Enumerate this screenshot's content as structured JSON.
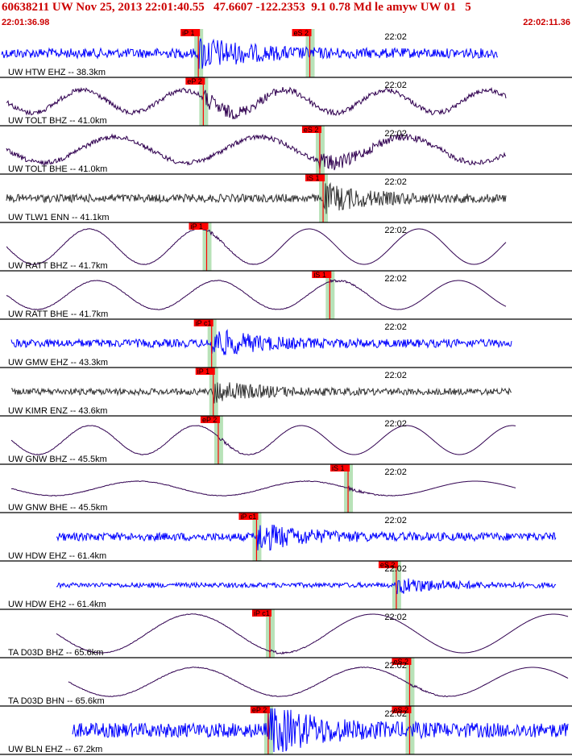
{
  "header": {
    "title": "60638211 UW Nov 25, 2013 22:01:40.55   47.6607 -122.2353  9.1 0.78 Md le amyw UW 01   5",
    "start_time": "22:01:36.98",
    "end_time": "22:02:11.36"
  },
  "colors": {
    "header_text": "#cc0000",
    "pick_box": "#ff0000",
    "pick_window": "#b8e2b8",
    "trace_blue": "#0000ff",
    "trace_purple": "#300050",
    "trace_gray": "#333333",
    "separator": "#000000"
  },
  "chart_data": {
    "type": "seismogram",
    "x_axis": {
      "start": "22:01:36.98",
      "end": "22:02:11.36",
      "minute_tick_label": "22:02"
    },
    "traces": [
      {
        "label": "UW HTW EHZ -- 38.3km",
        "channel_type": "EHZ",
        "color_key": "trace_blue",
        "picks": [
          {
            "label": "iP 1",
            "phase": "P",
            "time": "22:01:48.9"
          },
          {
            "label": "eS 2",
            "phase": "S",
            "time": "22:01:55.6"
          }
        ]
      },
      {
        "label": "UW TOLT BHZ -- 41.0km",
        "channel_type": "BHZ",
        "color_key": "trace_purple",
        "picks": [
          {
            "label": "eP 2",
            "phase": "P",
            "time": "22:01:49.2"
          }
        ]
      },
      {
        "label": "UW TOLT BHE -- 41.0km",
        "channel_type": "BHE",
        "color_key": "trace_purple",
        "picks": [
          {
            "label": "eS 2",
            "phase": "S",
            "time": "22:01:56.2"
          }
        ]
      },
      {
        "label": "UW TLW1 ENN -- 41.1km",
        "channel_type": "ENN",
        "color_key": "trace_gray",
        "picks": [
          {
            "label": "iS 1",
            "phase": "S",
            "time": "22:01:56.4"
          }
        ]
      },
      {
        "label": "UW RATT BHZ -- 41.7km",
        "channel_type": "BHZ",
        "color_key": "trace_purple",
        "picks": [
          {
            "label": "iP 1",
            "phase": "P",
            "time": "22:01:49.4"
          }
        ]
      },
      {
        "label": "UW RATT BHE -- 41.7km",
        "channel_type": "BHE",
        "color_key": "trace_purple",
        "picks": [
          {
            "label": "iS 1",
            "phase": "S",
            "time": "22:01:56.8"
          }
        ]
      },
      {
        "label": "UW GMW EHZ -- 43.3km",
        "channel_type": "EHZ",
        "color_key": "trace_blue",
        "picks": [
          {
            "label": "iP c1",
            "phase": "P",
            "time": "22:01:49.7"
          }
        ]
      },
      {
        "label": "UW KIMR ENZ -- 43.6km",
        "channel_type": "ENZ",
        "color_key": "trace_gray",
        "picks": [
          {
            "label": "iP 1",
            "phase": "P",
            "time": "22:01:49.8"
          }
        ]
      },
      {
        "label": "UW GNW BHZ -- 45.5km",
        "channel_type": "BHZ",
        "color_key": "trace_purple",
        "picks": [
          {
            "label": "eP 2",
            "phase": "P",
            "time": "22:01:50.1"
          }
        ]
      },
      {
        "label": "UW GNW BHE -- 45.5km",
        "channel_type": "BHE",
        "color_key": "trace_purple",
        "picks": [
          {
            "label": "iS 1",
            "phase": "S",
            "time": "22:01:57.9"
          }
        ]
      },
      {
        "label": "UW HDW EHZ -- 61.4km",
        "channel_type": "EHZ",
        "color_key": "trace_blue",
        "picks": [
          {
            "label": "iP c1",
            "phase": "P",
            "time": "22:01:52.4"
          }
        ]
      },
      {
        "label": "UW HDW EH2 -- 61.4km",
        "channel_type": "EH2",
        "color_key": "trace_blue",
        "picks": [
          {
            "label": "eS 2",
            "phase": "S",
            "time": "22:02:00.8"
          }
        ]
      },
      {
        "label": "TA D03D BHZ -- 65.6km",
        "channel_type": "BHZ",
        "color_key": "trace_purple",
        "picks": [
          {
            "label": "iP c1",
            "phase": "P",
            "time": "22:01:53.2"
          }
        ]
      },
      {
        "label": "TA D03D BHN -- 65.6km",
        "channel_type": "BHN",
        "color_key": "trace_purple",
        "picks": [
          {
            "label": "eS 2",
            "phase": "S",
            "time": "22:02:01.6"
          }
        ]
      },
      {
        "label": "UW BLN EHZ -- 67.2km",
        "channel_type": "EHZ",
        "color_key": "trace_blue",
        "picks": [
          {
            "label": "eP 2",
            "phase": "P",
            "time": "22:01:53.1"
          },
          {
            "label": "eS 2",
            "phase": "S",
            "time": "22:02:01.6"
          }
        ]
      }
    ]
  }
}
